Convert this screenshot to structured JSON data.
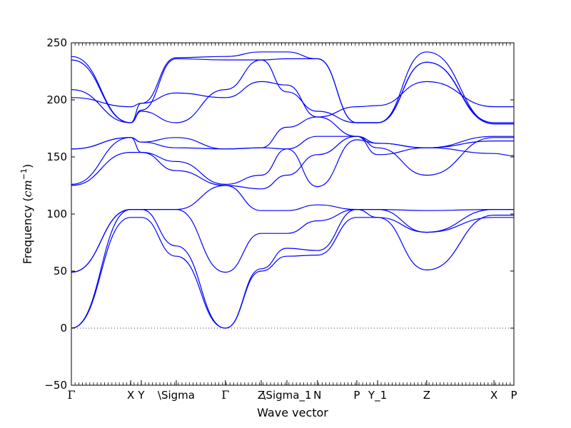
{
  "chart_data": {
    "type": "line",
    "title": "",
    "xlabel": "Wave vector",
    "ylabel": "Frequency",
    "ylabel_unit": "cm",
    "ylabel_unit_exp": "−1",
    "ylim": [
      -50,
      250
    ],
    "yticks": [
      -50,
      0,
      50,
      100,
      150,
      200,
      250
    ],
    "ytick_labels": [
      "−50",
      "0",
      "50",
      "100",
      "150",
      "200",
      "250"
    ],
    "xlim": [
      0,
      1
    ],
    "xticks": [
      {
        "label": "Γ",
        "x": 0.0
      },
      {
        "label": "X",
        "x": 0.134
      },
      {
        "label": "Y",
        "x": 0.158
      },
      {
        "label": "\\Sigma",
        "x": 0.237
      },
      {
        "label": "Γ",
        "x": 0.348
      },
      {
        "label": "Z",
        "x": 0.429
      },
      {
        "label": "\\Sigma_1",
        "x": 0.487
      },
      {
        "label": "N",
        "x": 0.556
      },
      {
        "label": "P",
        "x": 0.645
      },
      {
        "label": "Y_1",
        "x": 0.692
      },
      {
        "label": "Z",
        "x": 0.803
      },
      {
        "label": "X",
        "x": 0.955
      },
      {
        "label": "P",
        "x": 1.0
      }
    ],
    "zero_line": true,
    "line_color": "#0000ff",
    "band_count": 12,
    "x_kpts": [
      0.0,
      0.134,
      0.158,
      0.237,
      0.348,
      0.429,
      0.487,
      0.556,
      0.645,
      0.692,
      0.803,
      0.955,
      1.0
    ],
    "series": [
      {
        "values": [
          0,
          97,
          97,
          63,
          0,
          50,
          63,
          64,
          97,
          97,
          51,
          99,
          99
        ]
      },
      {
        "values": [
          0,
          104,
          104,
          72,
          0,
          52,
          70,
          68,
          104,
          104,
          84,
          104,
          104
        ]
      },
      {
        "values": [
          49,
          104,
          104,
          104,
          49,
          83,
          83,
          94,
          104,
          97,
          84,
          97,
          97
        ]
      },
      {
        "values": [
          49,
          104,
          104,
          104,
          125,
          103,
          103,
          108,
          104,
          104,
          103,
          104,
          104
        ]
      },
      {
        "values": [
          125,
          154,
          154,
          138,
          125,
          122,
          134,
          152,
          168,
          162,
          158,
          153,
          151
        ]
      },
      {
        "values": [
          126,
          167,
          154,
          146,
          126,
          134,
          157,
          168,
          168,
          158,
          134,
          167,
          167
        ]
      },
      {
        "values": [
          157,
          167,
          163,
          158,
          157,
          158,
          157,
          124,
          165,
          162,
          158,
          164,
          164
        ]
      },
      {
        "values": [
          157,
          167,
          163,
          167,
          157,
          158,
          176,
          185,
          168,
          152,
          158,
          168,
          168
        ]
      },
      {
        "values": [
          202,
          194,
          197,
          206,
          202,
          216,
          213,
          185,
          194,
          195,
          216,
          194,
          194
        ]
      },
      {
        "values": [
          209,
          180,
          190,
          180,
          209,
          235,
          207,
          190,
          180,
          180,
          233,
          180,
          180
        ]
      },
      {
        "values": [
          235,
          180,
          191,
          236,
          235,
          235,
          236,
          236,
          180,
          180,
          233,
          179,
          179
        ]
      },
      {
        "values": [
          238,
          180,
          197,
          237,
          238,
          242,
          242,
          236,
          180,
          180,
          242,
          179,
          179
        ]
      }
    ]
  }
}
